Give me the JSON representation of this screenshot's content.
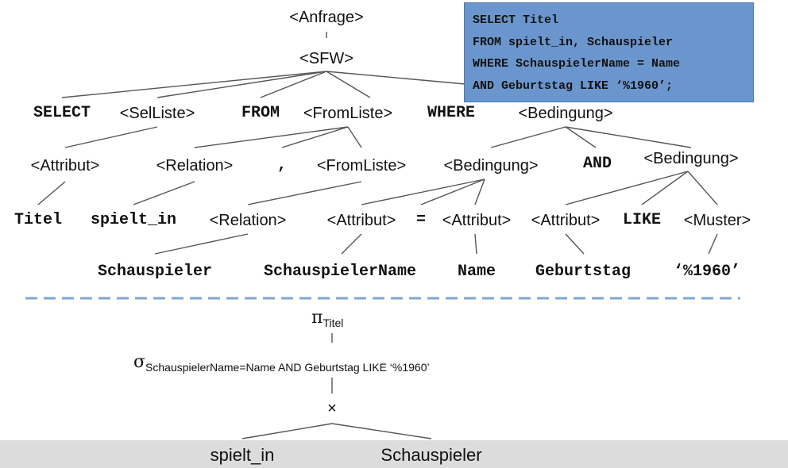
{
  "sql": {
    "lines": [
      "SELECT Titel",
      "FROM spielt_in, Schauspieler",
      "WHERE SchauspielerName = Name",
      "AND Geburtstag LIKE ‘%1960’;"
    ]
  },
  "tree": {
    "anfrage": "<Anfrage>",
    "sfw": "<SFW>",
    "select": "SELECT",
    "selliste": "<SelListe>",
    "from": "FROM",
    "fromliste": "<FromListe>",
    "where": "WHERE",
    "bedingung": "<Bedingung>",
    "attribut": "<Attribut>",
    "relation": "<Relation>",
    "comma": ",",
    "and": "AND",
    "equals": "=",
    "like": "LIKE",
    "muster": "<Muster>",
    "titel": "Titel",
    "spielt_in": "spielt_in",
    "schauspieler": "Schauspieler",
    "schauspielername": "SchauspielerName",
    "name": "Name",
    "geburtstag": "Geburtstag",
    "pattern": "‘%1960’"
  },
  "algebra": {
    "pi_symbol": "π",
    "pi_subscript": "Titel",
    "sigma_symbol": "σ",
    "sigma_subscript": "SchauspielerName=Name AND Geburtstag LIKE ‘%1960’",
    "cross_symbol": "×",
    "left_relation": "spielt_in",
    "right_relation": "Schauspieler"
  },
  "colors": {
    "box_fill": "#6b96cd",
    "divider": "#7fa6d6",
    "band": "#dcdcdc"
  }
}
